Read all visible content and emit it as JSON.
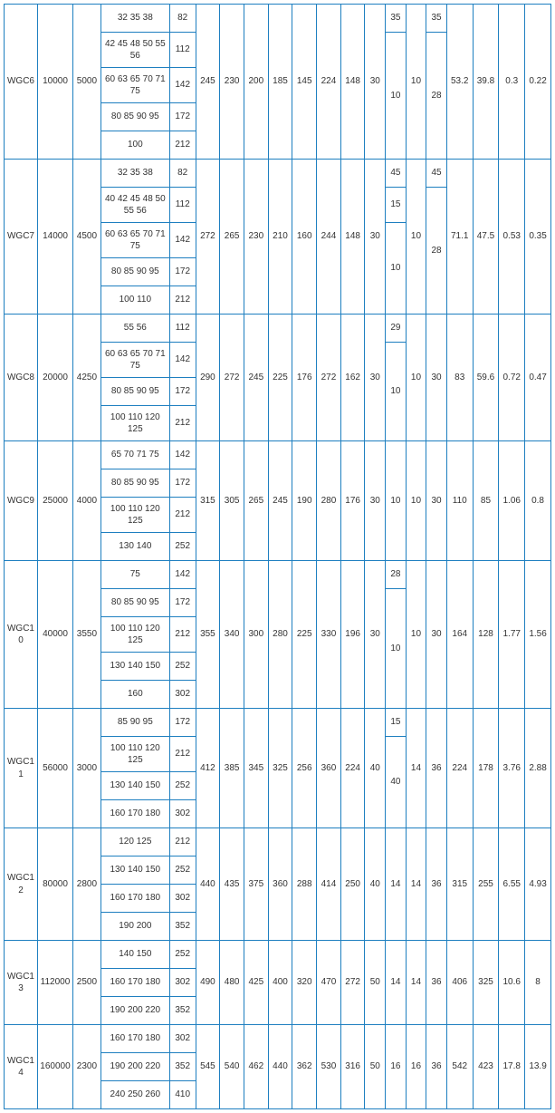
{
  "border_color": "#1e7fc0",
  "background_color": "#ffffff",
  "text_color": "#333333",
  "font_size": 10,
  "groups": [
    {
      "id": "WGC6",
      "c1": "10000",
      "c2": "5000",
      "col3": [
        "32 35 38",
        "42 45 48 50 55 56",
        "60 63 65 70 71 75",
        "80 85 90 95",
        "100"
      ],
      "col4": [
        "82",
        "112",
        "142",
        "172",
        "212"
      ],
      "tail": [
        "245",
        "230",
        "200",
        "185",
        "145",
        "224",
        "148",
        "30"
      ],
      "col13": [
        "35",
        "10"
      ],
      "col13_spans": [
        1,
        4
      ],
      "c14": "10",
      "col15": [
        "35",
        "28"
      ],
      "col15_spans": [
        1,
        4
      ],
      "end": [
        "53.2",
        "39.8",
        "0.3",
        "0.22"
      ]
    },
    {
      "id": "WGC7",
      "c1": "14000",
      "c2": "4500",
      "col3": [
        "32 35 38",
        "40 42 45 48 50 55 56",
        "60 63 65 70 71 75",
        "80 85 90 95",
        "100 110"
      ],
      "col4": [
        "82",
        "112",
        "142",
        "172",
        "212"
      ],
      "tail": [
        "272",
        "265",
        "230",
        "210",
        "160",
        "244",
        "148",
        "30"
      ],
      "col13": [
        "45",
        "15",
        "10"
      ],
      "col13_spans": [
        1,
        1,
        3
      ],
      "c14": "10",
      "col15": [
        "45",
        "28"
      ],
      "col15_spans": [
        1,
        4
      ],
      "end": [
        "71.1",
        "47.5",
        "0.53",
        "0.35"
      ]
    },
    {
      "id": "WGC8",
      "c1": "20000",
      "c2": "4250",
      "col3": [
        "55 56",
        "60 63 65 70 71 75",
        "80 85 90 95",
        "100 110 120 125"
      ],
      "col4": [
        "112",
        "142",
        "172",
        "212"
      ],
      "tail": [
        "290",
        "272",
        "245",
        "225",
        "176",
        "272",
        "162",
        "30"
      ],
      "col13": [
        "29",
        "10"
      ],
      "col13_spans": [
        1,
        3
      ],
      "c14": "10",
      "c15": "30",
      "end": [
        "83",
        "59.6",
        "0.72",
        "0.47"
      ]
    },
    {
      "id": "WGC9",
      "c1": "25000",
      "c2": "4000",
      "col3": [
        "65 70 71 75",
        "80 85 90 95",
        "100 110 120 125",
        "130 140"
      ],
      "col4": [
        "142",
        "172",
        "212",
        "252"
      ],
      "tail": [
        "315",
        "305",
        "265",
        "245",
        "190",
        "280",
        "176",
        "30"
      ],
      "col13": [
        "10"
      ],
      "col13_spans": [
        4
      ],
      "c14": "10",
      "c15": "30",
      "end": [
        "110",
        "85",
        "1.06",
        "0.8"
      ]
    },
    {
      "id": "WGC10",
      "c1": "40000",
      "c2": "3550",
      "col3": [
        "75",
        "80 85 90 95",
        "100 110 120 125",
        "130 140 150",
        "160"
      ],
      "col4": [
        "142",
        "172",
        "212",
        "252",
        "302"
      ],
      "tail": [
        "355",
        "340",
        "300",
        "280",
        "225",
        "330",
        "196",
        "30"
      ],
      "col13": [
        "28",
        "10"
      ],
      "col13_spans": [
        1,
        4
      ],
      "c14": "10",
      "c15": "30",
      "end": [
        "164",
        "128",
        "1.77",
        "1.56"
      ]
    },
    {
      "id": "WGC11",
      "c1": "56000",
      "c2": "3000",
      "col3": [
        "85 90 95",
        "100 110 120 125",
        "130 140 150",
        "160 170 180"
      ],
      "col4": [
        "172",
        "212",
        "252",
        "302"
      ],
      "tail": [
        "412",
        "385",
        "345",
        "325",
        "256",
        "360",
        "224",
        "40"
      ],
      "col13": [
        "15",
        "40"
      ],
      "col13_spans": [
        1,
        3
      ],
      "c14": "14",
      "c15": "36",
      "end": [
        "224",
        "178",
        "3.76",
        "2.88"
      ]
    },
    {
      "id": "WGC12",
      "c1": "80000",
      "c2": "2800",
      "col3": [
        "120 125",
        "130 140 150",
        "160 170 180",
        "190 200"
      ],
      "col4": [
        "212",
        "252",
        "302",
        "352"
      ],
      "tail": [
        "440",
        "435",
        "375",
        "360",
        "288",
        "414",
        "250",
        "40"
      ],
      "col13": [
        "14"
      ],
      "col13_spans": [
        4
      ],
      "c14": "14",
      "c15": "36",
      "end": [
        "315",
        "255",
        "6.55",
        "4.93"
      ]
    },
    {
      "id": "WGC13",
      "c1": "112000",
      "c2": "2500",
      "col3": [
        "140 150",
        "160 170 180",
        "190 200 220"
      ],
      "col4": [
        "252",
        "302",
        "352"
      ],
      "tail": [
        "490",
        "480",
        "425",
        "400",
        "320",
        "470",
        "272",
        "50"
      ],
      "col13": [
        "14"
      ],
      "col13_spans": [
        3
      ],
      "c14": "14",
      "c15": "36",
      "end": [
        "406",
        "325",
        "10.6",
        "8"
      ]
    },
    {
      "id": "WGC14",
      "c1": "160000",
      "c2": "2300",
      "col3": [
        "160 170 180",
        "190 200 220",
        "240 250 260"
      ],
      "col4": [
        "302",
        "352",
        "410"
      ],
      "tail": [
        "545",
        "540",
        "462",
        "440",
        "362",
        "530",
        "316",
        "50"
      ],
      "col13": [
        "16"
      ],
      "col13_spans": [
        3
      ],
      "c14": "16",
      "c15": "36",
      "end": [
        "542",
        "423",
        "17.8",
        "13.9"
      ]
    }
  ]
}
